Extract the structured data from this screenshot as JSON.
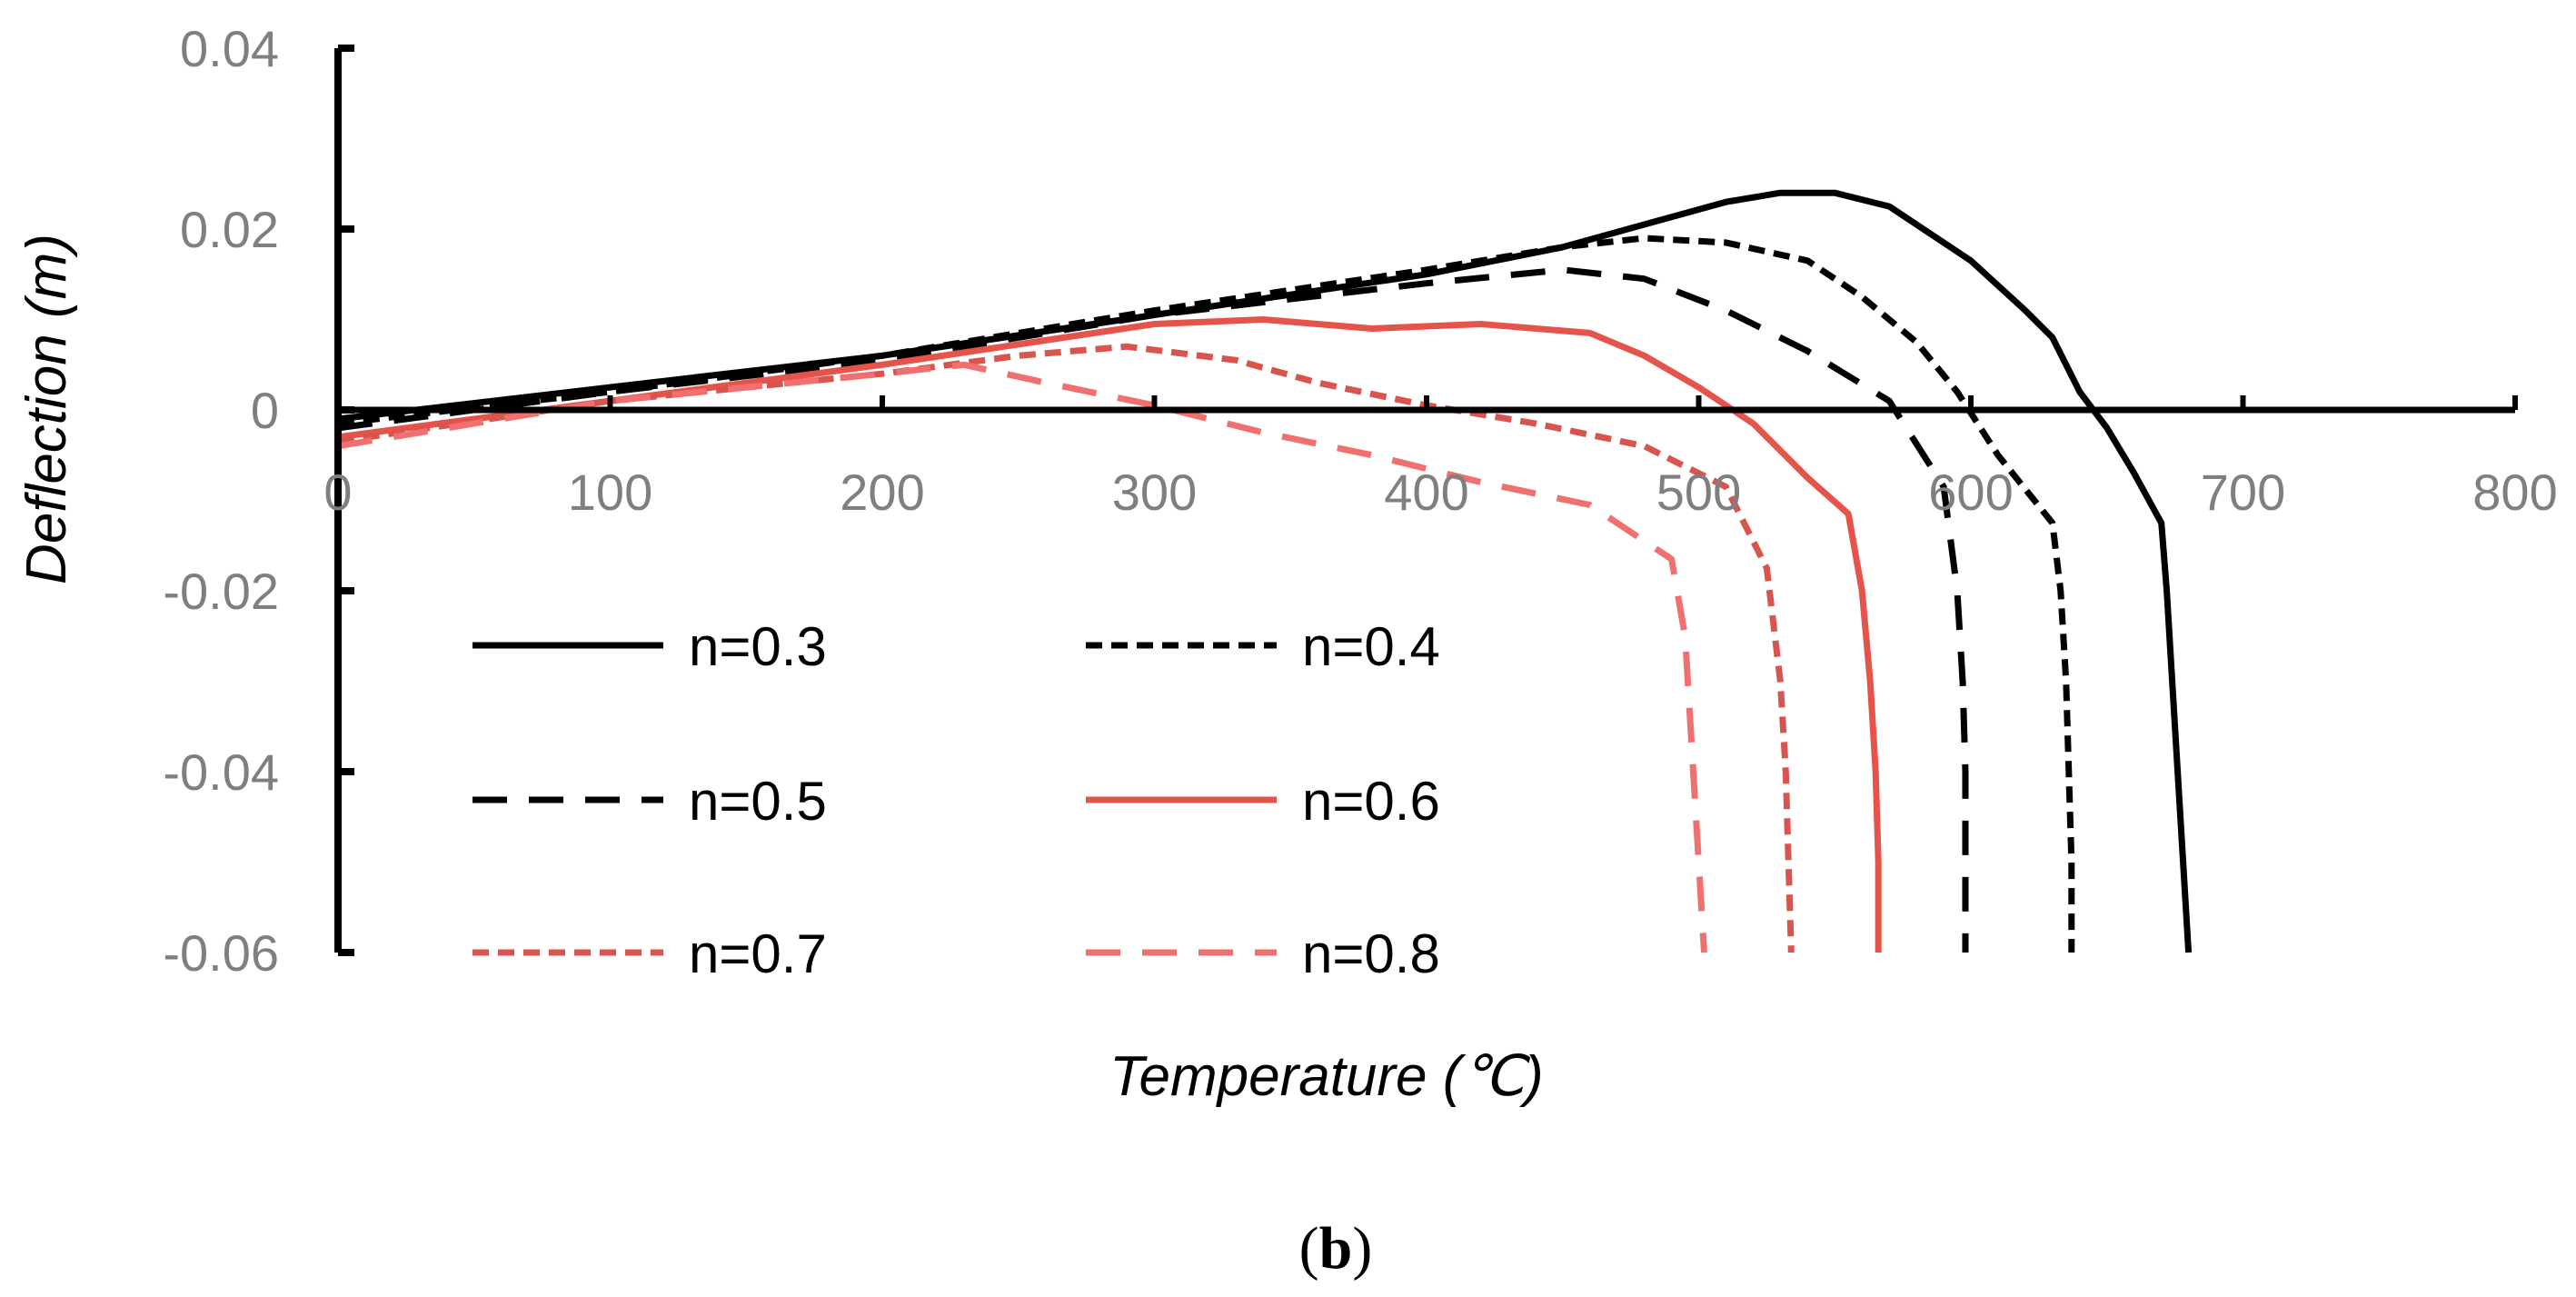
{
  "chart_data": {
    "type": "line",
    "title": "",
    "xlabel": "Temperature (℃)",
    "ylabel": "Deflection (m)",
    "caption_open": "(",
    "caption_letter": "b",
    "caption_close": ")",
    "xlim": [
      0,
      800
    ],
    "ylim": [
      -0.06,
      0.04
    ],
    "xticks": [
      0,
      100,
      200,
      300,
      400,
      500,
      600,
      700,
      800
    ],
    "xtick_labels": [
      "0",
      "100",
      "200",
      "300",
      "400",
      "500",
      "600",
      "700",
      "800"
    ],
    "yticks": [
      0.04,
      0.02,
      0,
      -0.02,
      -0.04,
      -0.06
    ],
    "ytick_labels": [
      "0.04",
      "0.02",
      "0",
      "-0.02",
      "-0.04",
      "-0.06"
    ],
    "grid": false,
    "legend_position": "bottom-center",
    "series": [
      {
        "name": "n=0.3",
        "color": "#000000",
        "style": "solid",
        "points": [
          [
            0,
            -0.001
          ],
          [
            100,
            0.0025
          ],
          [
            200,
            0.006
          ],
          [
            300,
            0.0105
          ],
          [
            400,
            0.015
          ],
          [
            450,
            0.018
          ],
          [
            480,
            0.0205
          ],
          [
            510,
            0.023
          ],
          [
            530,
            0.024
          ],
          [
            550,
            0.024
          ],
          [
            570,
            0.0225
          ],
          [
            600,
            0.0165
          ],
          [
            620,
            0.011
          ],
          [
            630,
            0.008
          ],
          [
            640,
            0.002
          ],
          [
            650,
            -0.002
          ],
          [
            660,
            -0.007
          ],
          [
            670,
            -0.0125
          ],
          [
            672,
            -0.02
          ],
          [
            674,
            -0.03
          ],
          [
            676,
            -0.04
          ],
          [
            678,
            -0.05
          ],
          [
            680,
            -0.06
          ]
        ]
      },
      {
        "name": "n=0.4",
        "color": "#000000",
        "style": "short-dash",
        "points": [
          [
            0,
            -0.0015
          ],
          [
            100,
            0.002
          ],
          [
            200,
            0.006
          ],
          [
            300,
            0.011
          ],
          [
            400,
            0.0155
          ],
          [
            450,
            0.018
          ],
          [
            480,
            0.019
          ],
          [
            510,
            0.0185
          ],
          [
            540,
            0.0165
          ],
          [
            560,
            0.0125
          ],
          [
            580,
            0.0075
          ],
          [
            595,
            0.002
          ],
          [
            610,
            -0.005
          ],
          [
            630,
            -0.0125
          ],
          [
            633,
            -0.02
          ],
          [
            635,
            -0.03
          ],
          [
            636,
            -0.04
          ],
          [
            637,
            -0.05
          ],
          [
            637,
            -0.06
          ]
        ]
      },
      {
        "name": "n=0.5",
        "color": "#000000",
        "style": "long-dash",
        "points": [
          [
            0,
            -0.002
          ],
          [
            100,
            0.002
          ],
          [
            200,
            0.0055
          ],
          [
            300,
            0.0105
          ],
          [
            400,
            0.014
          ],
          [
            450,
            0.0155
          ],
          [
            480,
            0.0145
          ],
          [
            510,
            0.011
          ],
          [
            540,
            0.0065
          ],
          [
            570,
            0.001
          ],
          [
            590,
            -0.0085
          ],
          [
            595,
            -0.02
          ],
          [
            597,
            -0.03
          ],
          [
            598,
            -0.04
          ],
          [
            598,
            -0.05
          ],
          [
            598,
            -0.06
          ]
        ]
      },
      {
        "name": "n=0.6",
        "color": "#e5534b",
        "style": "solid",
        "points": [
          [
            0,
            -0.003
          ],
          [
            100,
            0.001
          ],
          [
            200,
            0.005
          ],
          [
            300,
            0.0095
          ],
          [
            340,
            0.01
          ],
          [
            380,
            0.009
          ],
          [
            420,
            0.0095
          ],
          [
            460,
            0.0085
          ],
          [
            480,
            0.006
          ],
          [
            500,
            0.0025
          ],
          [
            520,
            -0.0015
          ],
          [
            540,
            -0.0075
          ],
          [
            555,
            -0.0115
          ],
          [
            560,
            -0.02
          ],
          [
            563,
            -0.03
          ],
          [
            565,
            -0.04
          ],
          [
            566,
            -0.05
          ],
          [
            566,
            -0.06
          ]
        ]
      },
      {
        "name": "n=0.7",
        "color": "#d9534f",
        "style": "short-dash",
        "points": [
          [
            0,
            -0.0035
          ],
          [
            100,
            0.001
          ],
          [
            200,
            0.004
          ],
          [
            250,
            0.006
          ],
          [
            290,
            0.007
          ],
          [
            330,
            0.0055
          ],
          [
            360,
            0.003
          ],
          [
            400,
            0.0005
          ],
          [
            440,
            -0.0015
          ],
          [
            480,
            -0.004
          ],
          [
            510,
            -0.0085
          ],
          [
            525,
            -0.0175
          ],
          [
            530,
            -0.03
          ],
          [
            532,
            -0.04
          ],
          [
            533,
            -0.05
          ],
          [
            534,
            -0.06
          ]
        ]
      },
      {
        "name": "n=0.8",
        "color": "#f07070",
        "style": "long-dash",
        "points": [
          [
            0,
            -0.004
          ],
          [
            100,
            0.001
          ],
          [
            200,
            0.004
          ],
          [
            230,
            0.005
          ],
          [
            260,
            0.003
          ],
          [
            300,
            0.0005
          ],
          [
            340,
            -0.0025
          ],
          [
            380,
            -0.005
          ],
          [
            420,
            -0.008
          ],
          [
            460,
            -0.0105
          ],
          [
            490,
            -0.0165
          ],
          [
            495,
            -0.025
          ],
          [
            497,
            -0.035
          ],
          [
            499,
            -0.045
          ],
          [
            501,
            -0.055
          ],
          [
            502,
            -0.06
          ]
        ]
      }
    ]
  }
}
